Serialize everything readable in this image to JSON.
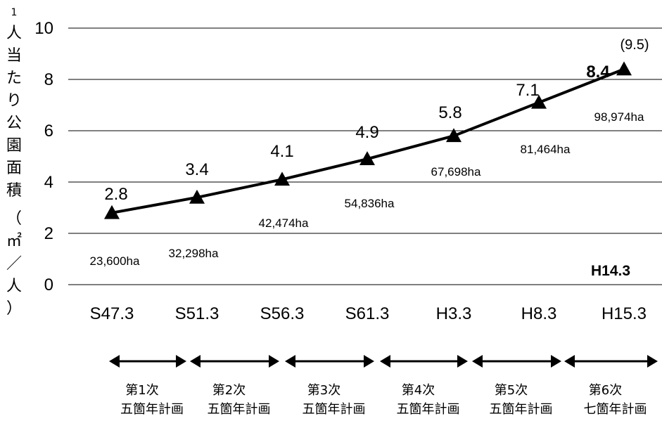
{
  "chart_data": {
    "type": "line",
    "title": "",
    "ylabel_chars": [
      "1",
      "人",
      "当",
      "た",
      "り",
      "公",
      "園",
      "面",
      "積",
      "（",
      "㎡",
      "／",
      "人",
      "）"
    ],
    "xlabel": "",
    "categories": [
      "S47.3",
      "S51.3",
      "S56.3",
      "S61.3",
      "H3.3",
      "H8.3",
      "H15.3"
    ],
    "values": [
      2.8,
      3.4,
      4.1,
      4.9,
      5.8,
      7.1,
      8.4
    ],
    "value_labels": [
      "2.8",
      "3.4",
      "4.1",
      "4.9",
      "5.8",
      "7.1",
      "8.4"
    ],
    "area_labels": [
      "23,600ha",
      "32,298ha",
      "42,474ha",
      "54,836ha",
      "67,698ha",
      "81,464ha",
      "98,974ha"
    ],
    "last_value_note": "(9.5)",
    "inset_label": "H14.3",
    "ylim": [
      0,
      10
    ],
    "yticks": [
      0,
      2,
      4,
      6,
      8,
      10
    ],
    "grid": true,
    "marker": "triangle",
    "line_color": "#000000",
    "plans": [
      {
        "number": "第1次",
        "name": "五箇年計画"
      },
      {
        "number": "第2次",
        "name": "五箇年計画"
      },
      {
        "number": "第3次",
        "name": "五箇年計画"
      },
      {
        "number": "第4次",
        "name": "五箇年計画"
      },
      {
        "number": "第5次",
        "name": "五箇年計画"
      },
      {
        "number": "第6次",
        "name": "七箇年計画"
      }
    ]
  }
}
